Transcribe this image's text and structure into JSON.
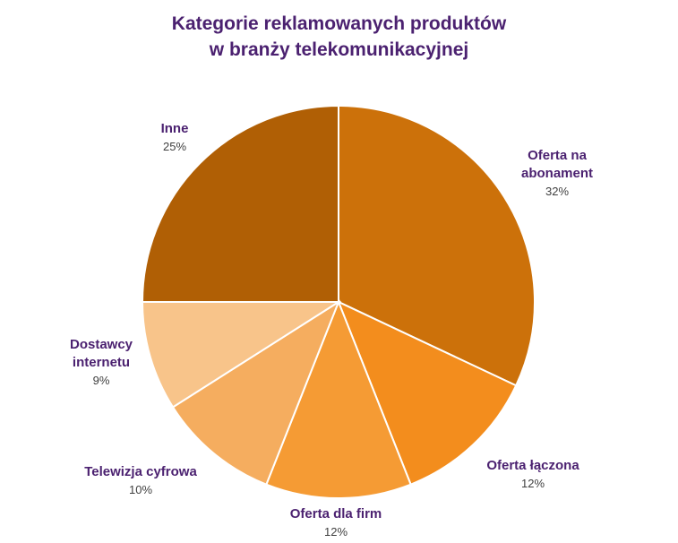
{
  "chart_data": {
    "type": "pie",
    "title_lines": [
      "Kategorie reklamowanych produktów",
      "w branży telekomunikacyjnej"
    ],
    "slices": [
      {
        "label_lines": [
          "Oferta na",
          "abonament"
        ],
        "value": 32,
        "pct_label": "32%",
        "color": "#cc710a"
      },
      {
        "label_lines": [
          "Oferta łączona"
        ],
        "value": 12,
        "pct_label": "12%",
        "color": "#f38d1d"
      },
      {
        "label_lines": [
          "Oferta dla firm"
        ],
        "value": 12,
        "pct_label": "12%",
        "color": "#f59b34"
      },
      {
        "label_lines": [
          "Telewizja cyfrowa"
        ],
        "value": 10,
        "pct_label": "10%",
        "color": "#f5ad5f"
      },
      {
        "label_lines": [
          "Dostawcy",
          "internetu"
        ],
        "value": 9,
        "pct_label": "9%",
        "color": "#f8c48a"
      },
      {
        "label_lines": [
          "Inne"
        ],
        "value": 25,
        "pct_label": "25%",
        "color": "#b05f05"
      }
    ]
  }
}
